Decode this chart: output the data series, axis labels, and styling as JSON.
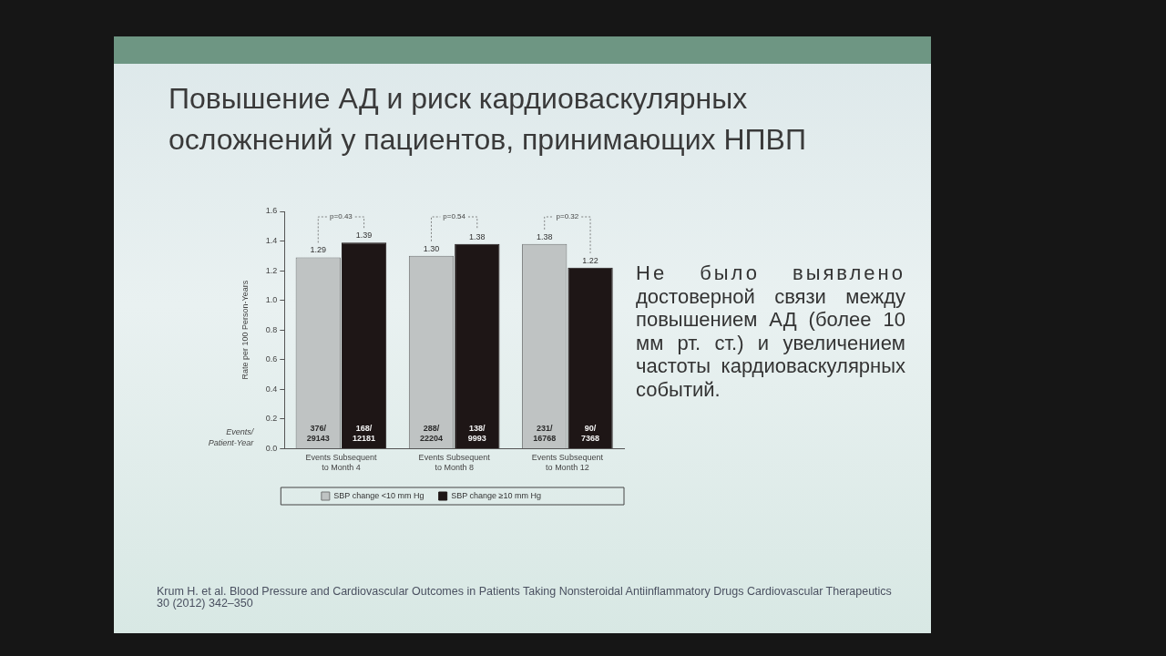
{
  "chart_data": {
    "type": "bar",
    "title": "Повышение АД и риск кардиоваскулярных осложнений у пациентов, принимающих НПВП",
    "ylabel": "Rate per 100 Person-Years",
    "categories": [
      "Events Subsequent to Month 4",
      "Events Subsequent to Month 8",
      "Events Subsequent to Month 12"
    ],
    "series": [
      {
        "name": "SBP change <10 mm Hg",
        "color": "#bfc3c3",
        "values": [
          1.29,
          1.3,
          1.38
        ],
        "value_labels": [
          "1.29",
          "1.30",
          "1.38"
        ]
      },
      {
        "name": "SBP change ≥10 mm Hg",
        "color": "#1e1616",
        "values": [
          1.39,
          1.38,
          1.22
        ],
        "value_labels": [
          "1.39",
          "1.38",
          "1.22"
        ]
      }
    ],
    "ylim": [
      0,
      1.6
    ],
    "yticks": [
      {
        "value": 0,
        "label": "0.0"
      },
      0.2,
      0.4,
      0.6,
      0.8,
      {
        "value": 1,
        "label": "1.0"
      },
      1.2,
      1.4,
      1.6
    ],
    "grid": false,
    "legend": "bottom",
    "annotations": [
      "Не было выявлено достоверной связи между повышением АД (более 10 мм рт. ст.) и увеличением частоты кардиоваскулярных событий.",
      "Events/ Patient-Year",
      "Krum H. et al. Blood Pressure and Cardiovascular Outcomes in Patients Taking Nonsteroidal Antiinflammatory Drugs Cardiovascular Therapeutics 30 (2012) 342–350",
      "p=0.43",
      "p=0.54",
      "p=0.32",
      {
        "text": "376/ 29143",
        "x": "Events Subsequent to Month 4",
        "y": 0.1
      },
      {
        "text": "168/ 12181",
        "x": "Events Subsequent to Month 4",
        "y": 0.1
      },
      {
        "text": "288/ 22204",
        "x": "Events Subsequent to Month 8",
        "y": 0.1
      },
      {
        "text": "138/ 9993",
        "x": "Events Subsequent to Month 8",
        "y": 0.1
      },
      {
        "text": "231/ 16768",
        "x": "Events Subsequent to Month 12",
        "y": 0.1
      },
      {
        "text": "90/ 7368",
        "x": "Events Subsequent to Month 12",
        "y": 0.1
      }
    ]
  }
}
